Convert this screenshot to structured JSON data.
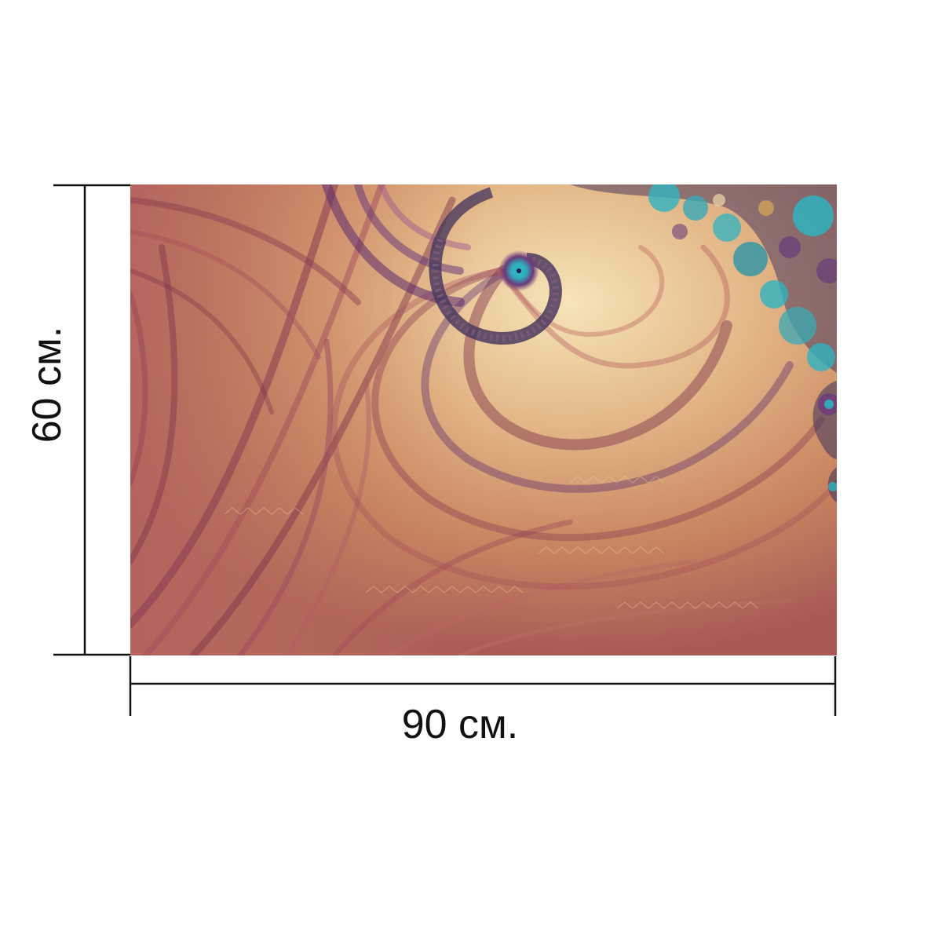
{
  "dimensions": {
    "width_label": "90 см.",
    "height_label": "60 см."
  },
  "artwork": {
    "description_icon": "fractal-spiral-image",
    "colors": {
      "base": "#c98460",
      "highlight": "#f1d9a6",
      "shadow": "#7a2e4a",
      "purple": "#5a2a6e",
      "teal": "#2fb3c0"
    }
  },
  "lines": {
    "color": "#111111"
  }
}
